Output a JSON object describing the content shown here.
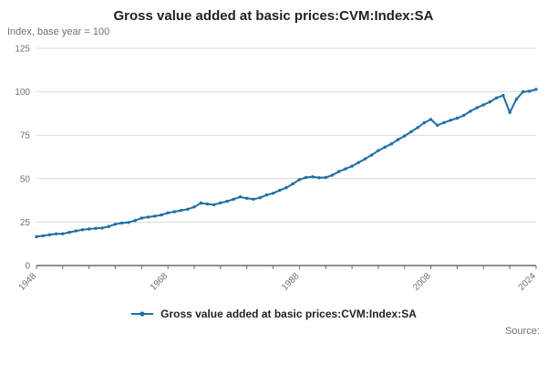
{
  "title": "Gross value added at basic prices:CVM:Index:SA",
  "subtitle": "Index, base year = 100",
  "legend_label": "Gross value added at basic prices:CVM:Index:SA",
  "source_label": "Source:",
  "colors": {
    "line": "#1d70a5",
    "grid": "#d9d9d9",
    "axis": "#222222",
    "tick_text": "#707071"
  },
  "chart_data": {
    "type": "line",
    "title": "Gross value added at basic prices:CVM:Index:SA",
    "ylabel": "Index, base year = 100",
    "xlabel": "",
    "legend_position": "bottom",
    "grid": "horizontal",
    "marker": "circle",
    "ylim": [
      0,
      125
    ],
    "y_ticks": [
      0,
      25,
      50,
      75,
      100,
      125
    ],
    "x_range": [
      1948,
      2024
    ],
    "x_step": 1,
    "x_tick_labels": [
      1948,
      1968,
      1988,
      2008,
      2024
    ],
    "x_minor_tick_step": 4,
    "series": [
      {
        "name": "Gross value added at basic prices:CVM:Index:SA",
        "values": [
          16.6,
          17.1,
          17.7,
          18.2,
          18.3,
          19.1,
          19.9,
          20.6,
          21.0,
          21.4,
          21.6,
          22.5,
          23.8,
          24.5,
          24.8,
          25.9,
          27.3,
          27.9,
          28.4,
          29.1,
          30.3,
          31.0,
          31.7,
          32.4,
          33.7,
          36.0,
          35.4,
          35.0,
          36.1,
          37.0,
          38.2,
          39.5,
          38.7,
          38.2,
          39.0,
          40.6,
          41.6,
          43.3,
          44.8,
          47.0,
          49.5,
          50.7,
          51.1,
          50.5,
          50.7,
          52.0,
          54.1,
          55.6,
          57.2,
          59.3,
          61.4,
          63.6,
          66.1,
          68.1,
          70.0,
          72.5,
          74.6,
          77.0,
          79.4,
          82.2,
          84.1,
          80.7,
          82.3,
          83.6,
          84.8,
          86.4,
          88.8,
          90.8,
          92.5,
          94.2,
          96.5,
          97.9,
          88.1,
          95.7,
          100.0,
          100.3,
          101.4
        ]
      }
    ]
  }
}
